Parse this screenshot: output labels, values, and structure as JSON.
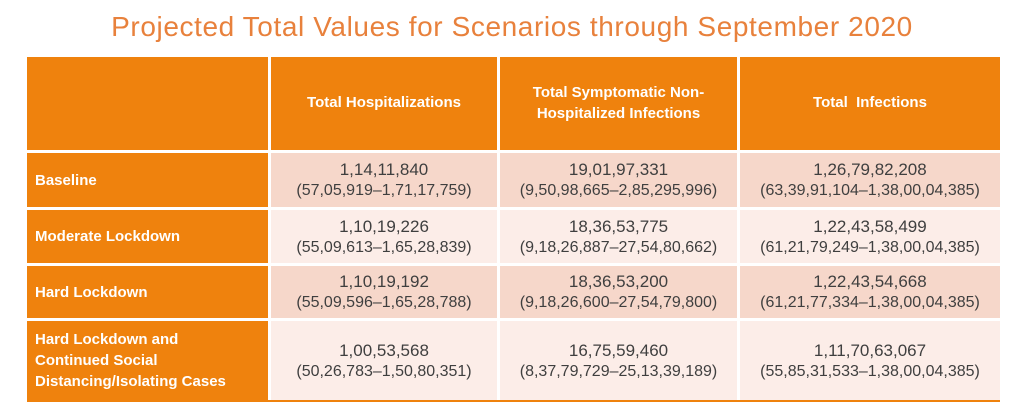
{
  "title": "Projected Total Values for Scenarios through September 2020",
  "colors": {
    "table_orange": "#EF820D",
    "title_orange": "#E8813C",
    "row_shade_dark": "#F6D7CA",
    "row_shade_light": "#FCEDE8",
    "data_text": "#3F3F3F",
    "header_text": "#FFFFFF"
  },
  "chart_data": {
    "type": "table",
    "title": "Projected Total Values for Scenarios through September 2020",
    "columns": [
      "",
      "Total Hospitalizations",
      "Total Symptomatic Non-Hospitalized Infections",
      "Total  Infections"
    ],
    "rows": [
      {
        "label": "Baseline",
        "cells": [
          {
            "value": "1,14,11,840",
            "range": "(57,05,919–1,71,17,759)"
          },
          {
            "value": "19,01,97,331",
            "range": "(9,50,98,665–2,85,295,996)"
          },
          {
            "value": "1,26,79,82,208",
            "range": "(63,39,91,104–1,38,00,04,385)"
          }
        ]
      },
      {
        "label": "Moderate Lockdown",
        "cells": [
          {
            "value": "1,10,19,226",
            "range": "(55,09,613–1,65,28,839)"
          },
          {
            "value": "18,36,53,775",
            "range": "(9,18,26,887–27,54,80,662)"
          },
          {
            "value": "1,22,43,58,499",
            "range": "(61,21,79,249–1,38,00,04,385)"
          }
        ]
      },
      {
        "label": "Hard Lockdown",
        "cells": [
          {
            "value": "1,10,19,192",
            "range": "(55,09,596–1,65,28,788)"
          },
          {
            "value": "18,36,53,200",
            "range": "(9,18,26,600–27,54,79,800)"
          },
          {
            "value": "1,22,43,54,668",
            "range": "(61,21,77,334–1,38,00,04,385)"
          }
        ]
      },
      {
        "label": "Hard Lockdown and Continued Social Distancing/Isolating Cases",
        "cells": [
          {
            "value": "1,00,53,568",
            "range": "(50,26,783–1,50,80,351)"
          },
          {
            "value": "16,75,59,460",
            "range": "(8,37,79,729–25,13,39,189)"
          },
          {
            "value": "1,11,70,63,067",
            "range": "(55,85,31,533–1,38,00,04,385)"
          }
        ]
      }
    ]
  }
}
